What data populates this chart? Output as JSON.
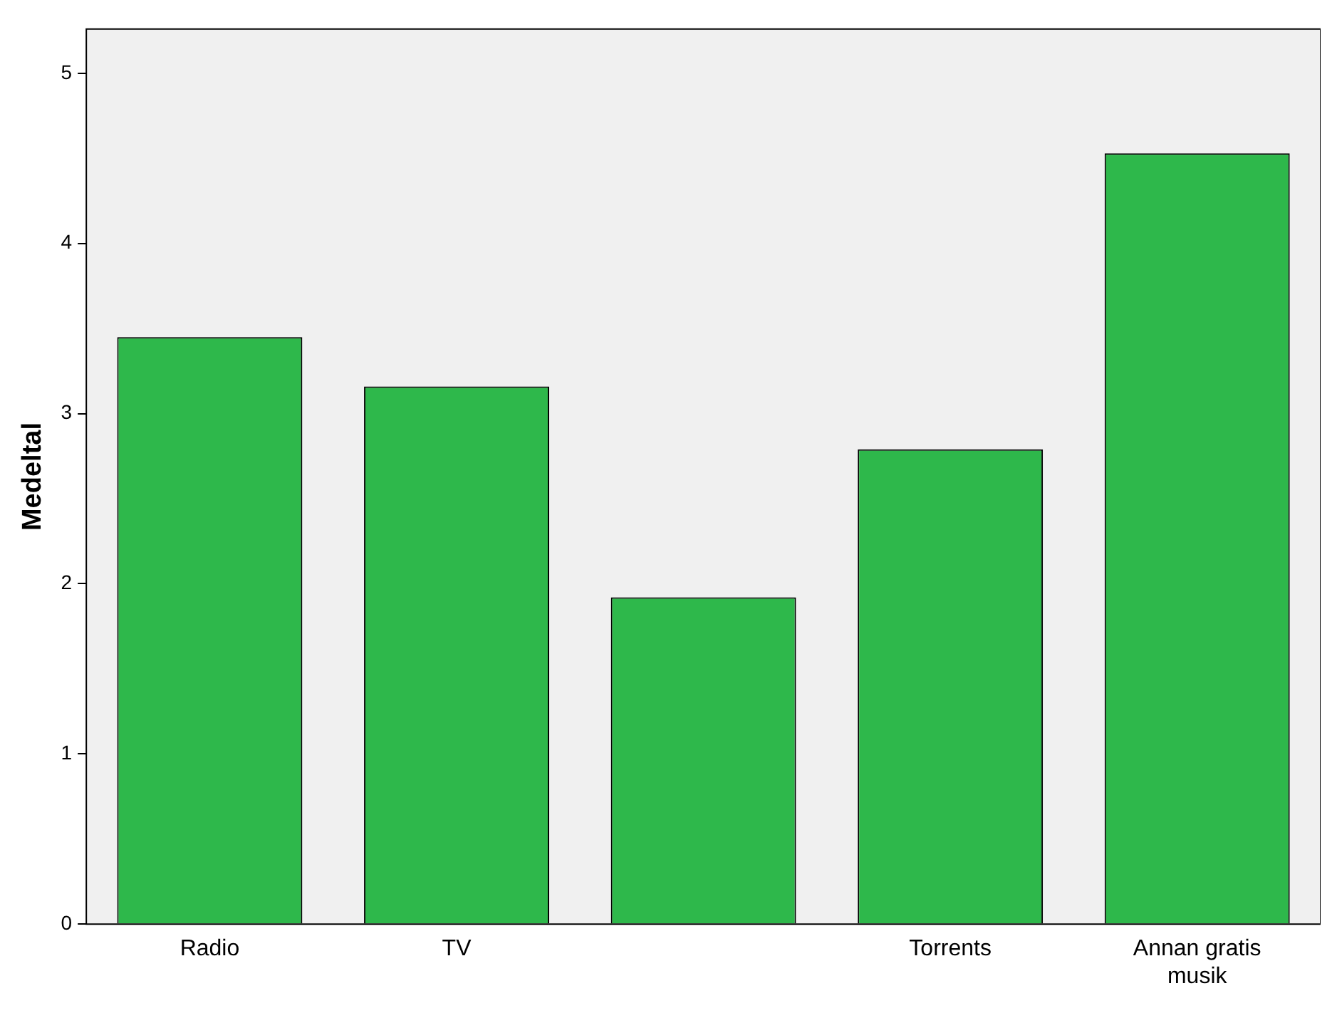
{
  "chart_data": {
    "type": "bar",
    "ylabel": "Medeltal",
    "categories": [
      "Radio",
      "TV",
      null,
      "Torrents",
      "Annan gratis musik"
    ],
    "values": [
      3.45,
      3.16,
      1.92,
      2.79,
      4.53
    ],
    "color": "#2eb84b",
    "ylim": [
      0,
      5.26
    ],
    "yticks": [
      0,
      1,
      2,
      3,
      4,
      5
    ],
    "grid": false,
    "legend": false
  }
}
